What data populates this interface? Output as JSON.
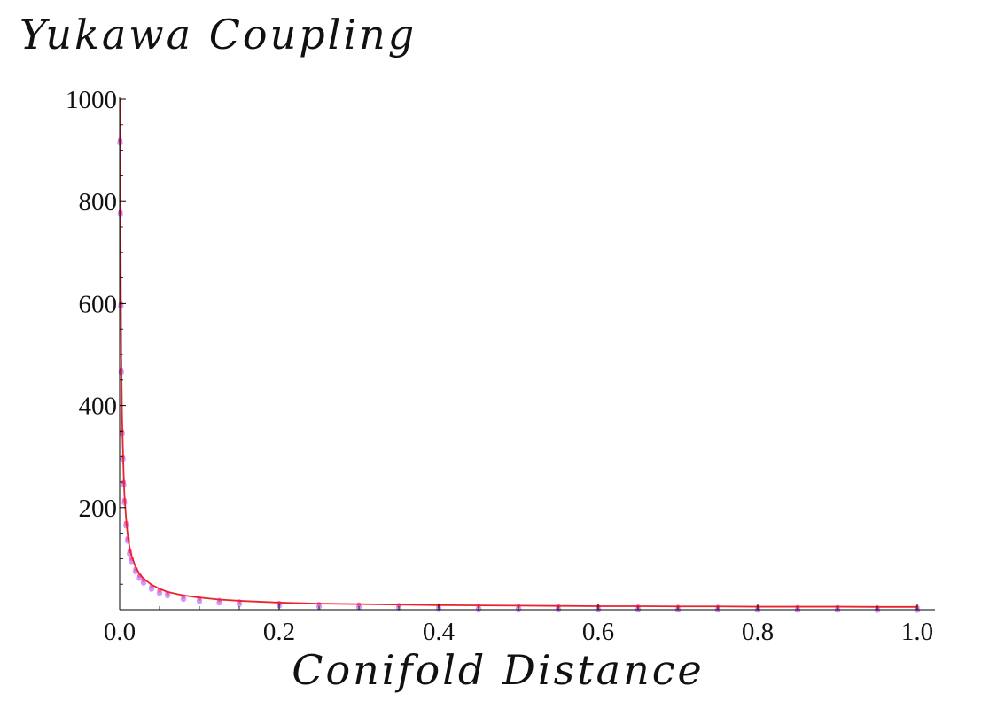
{
  "chart_data": {
    "type": "scatter",
    "title": "",
    "xlabel": "Conifold Distance",
    "ylabel": "Yukawa Coupling",
    "xlim": [
      0.0,
      1.0
    ],
    "ylim": [
      0,
      1000
    ],
    "x_ticks": [
      "0.0",
      "0.2",
      "0.4",
      "0.6",
      "0.8",
      "1.0"
    ],
    "y_ticks": [
      "200",
      "400",
      "600",
      "800",
      "1000"
    ],
    "grid": false,
    "legend": "none",
    "colors": {
      "fit_line": "#e8242f",
      "points_light": "#c08cff",
      "points_pink": "#ff4fa8"
    },
    "series": [
      {
        "kind": "points",
        "x": [
          0.0005,
          0.001,
          0.0015,
          0.002,
          0.003,
          0.004,
          0.005,
          0.006,
          0.008,
          0.01,
          0.0125,
          0.015,
          0.02,
          0.025,
          0.03,
          0.04,
          0.05,
          0.06,
          0.08,
          0.1,
          0.125,
          0.15,
          0.2,
          0.25,
          0.3,
          0.35,
          0.4,
          0.45,
          0.5,
          0.55,
          0.6,
          0.65,
          0.7,
          0.75,
          0.8,
          0.85,
          0.9,
          0.95,
          1.0
        ],
        "y": [
          920,
          780,
          600,
          470,
          350,
          300,
          250,
          215,
          170,
          140,
          115,
          100,
          80,
          67,
          58,
          46,
          38,
          33,
          26,
          22,
          19,
          16,
          13,
          11,
          10,
          9,
          8,
          7,
          7,
          6.5,
          6,
          6,
          5.5,
          5.5,
          5,
          5,
          5,
          4.5,
          4.5
        ]
      },
      {
        "kind": "fit",
        "x": [
          0.0005,
          0.001,
          0.0015,
          0.002,
          0.003,
          0.004,
          0.005,
          0.006,
          0.008,
          0.01,
          0.0125,
          0.015,
          0.02,
          0.025,
          0.03,
          0.04,
          0.05,
          0.06,
          0.08,
          0.1,
          0.125,
          0.15,
          0.2,
          0.25,
          0.3,
          0.35,
          0.4,
          0.45,
          0.5,
          0.55,
          0.6,
          0.65,
          0.7,
          0.75,
          0.8,
          0.85,
          0.9,
          0.95,
          1.0
        ],
        "y": [
          1000,
          800,
          640,
          500,
          380,
          320,
          265,
          225,
          180,
          148,
          122,
          105,
          84,
          70,
          61,
          49,
          41,
          35,
          28,
          24,
          20,
          17.5,
          14,
          12,
          11,
          10,
          9,
          8.5,
          8,
          7.5,
          7,
          7,
          6.5,
          6.5,
          6,
          6,
          6,
          5.5,
          5.5
        ]
      }
    ]
  }
}
